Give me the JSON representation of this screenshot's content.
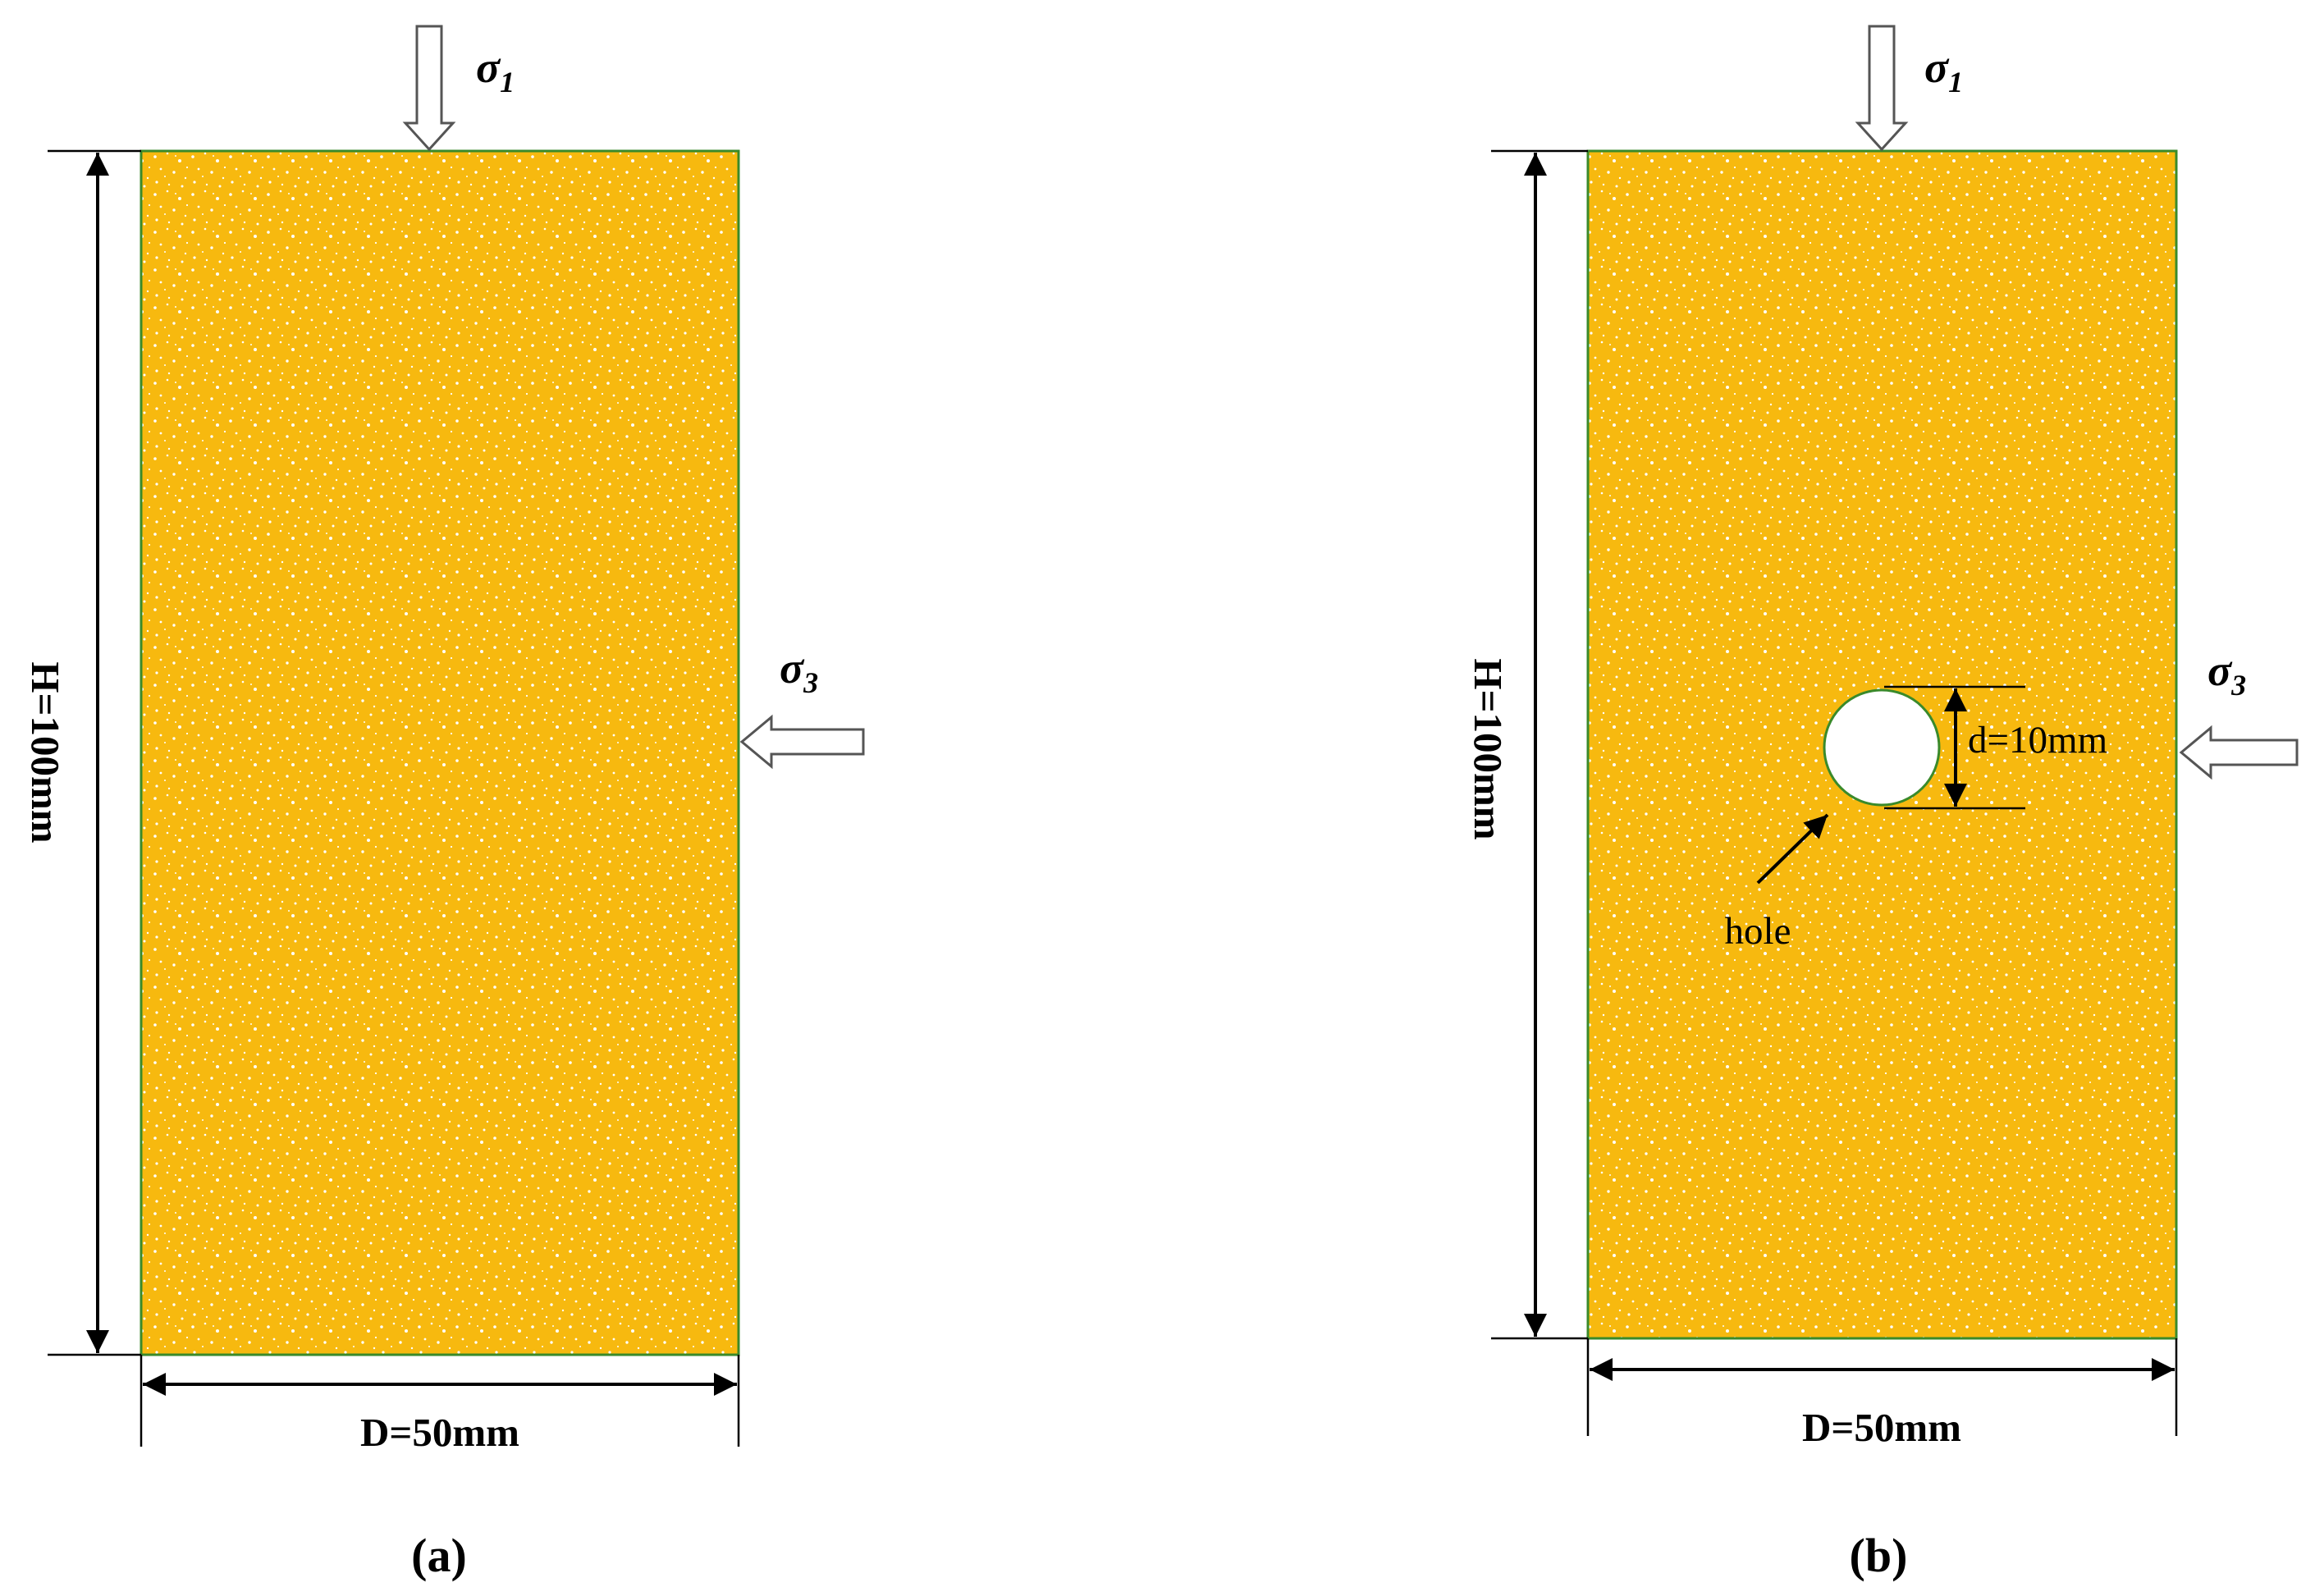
{
  "panels": [
    {
      "sigma1": {
        "symbol": "σ",
        "subscript": "1"
      },
      "sigma3": {
        "symbol": "σ",
        "subscript": "3"
      },
      "height_label": "H=100mm",
      "width_label": "D=50mm",
      "caption": "(a)"
    },
    {
      "sigma1": {
        "symbol": "σ",
        "subscript": "1"
      },
      "sigma3": {
        "symbol": "σ",
        "subscript": "3"
      },
      "height_label": "H=100mm",
      "width_label": "D=50mm",
      "caption": "(b)",
      "hole_diameter_label": "d=10mm",
      "hole_label": "hole"
    }
  ]
}
